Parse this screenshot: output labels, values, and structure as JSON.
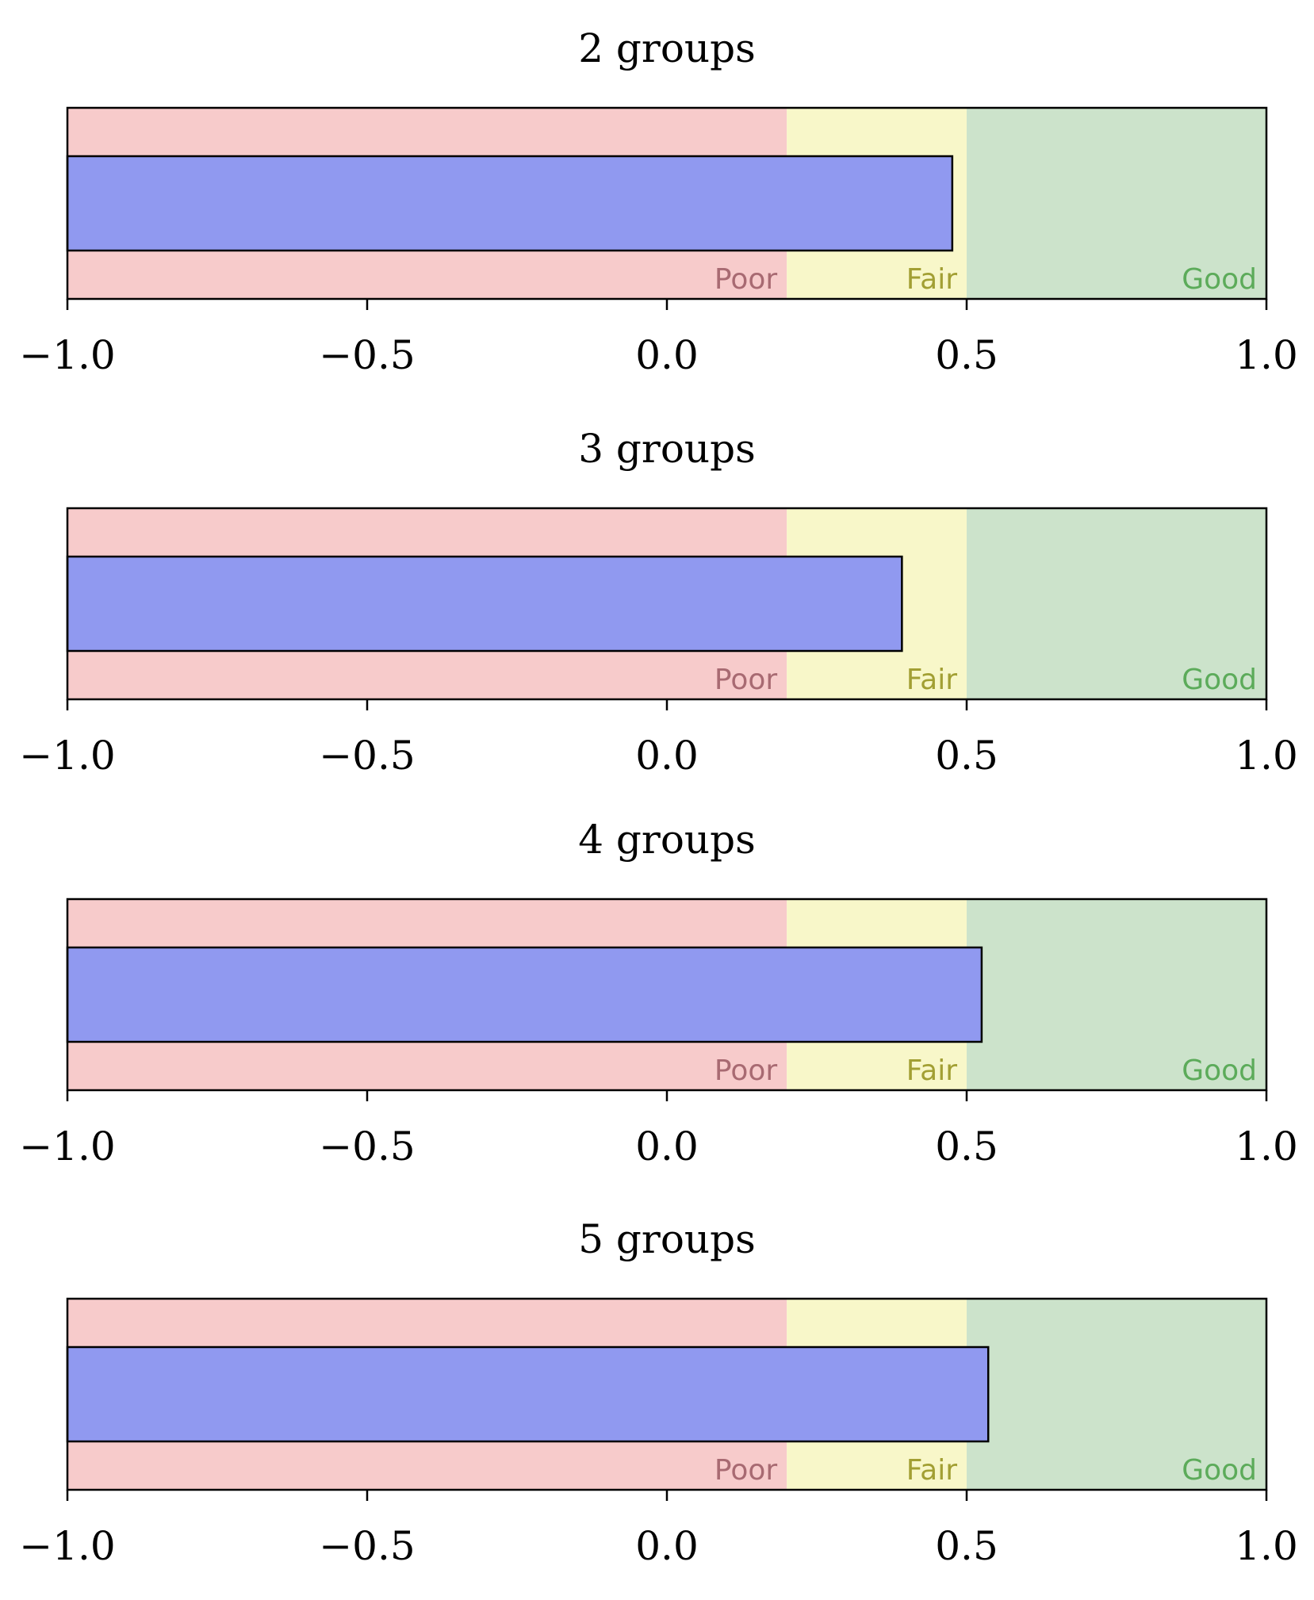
{
  "chart_data": [
    {
      "type": "bar",
      "orientation": "horizontal",
      "title": "2 groups",
      "value": 0.476,
      "xlim": [
        -1.0,
        1.0
      ],
      "xticks": [
        -1.0,
        -0.5,
        0.0,
        0.5,
        1.0
      ],
      "xtick_labels": [
        "−1.0",
        "−0.5",
        "0.0",
        "0.5",
        "1.0"
      ],
      "bands": [
        {
          "label": "Poor",
          "from": -1.0,
          "to": 0.2
        },
        {
          "label": "Fair",
          "from": 0.2,
          "to": 0.5
        },
        {
          "label": "Good",
          "from": 0.5,
          "to": 1.0
        }
      ]
    },
    {
      "type": "bar",
      "orientation": "horizontal",
      "title": "3 groups",
      "value": 0.392,
      "xlim": [
        -1.0,
        1.0
      ],
      "xticks": [
        -1.0,
        -0.5,
        0.0,
        0.5,
        1.0
      ],
      "xtick_labels": [
        "−1.0",
        "−0.5",
        "0.0",
        "0.5",
        "1.0"
      ],
      "bands": [
        {
          "label": "Poor",
          "from": -1.0,
          "to": 0.2
        },
        {
          "label": "Fair",
          "from": 0.2,
          "to": 0.5
        },
        {
          "label": "Good",
          "from": 0.5,
          "to": 1.0
        }
      ]
    },
    {
      "type": "bar",
      "orientation": "horizontal",
      "title": "4 groups",
      "value": 0.525,
      "xlim": [
        -1.0,
        1.0
      ],
      "xticks": [
        -1.0,
        -0.5,
        0.0,
        0.5,
        1.0
      ],
      "xtick_labels": [
        "−1.0",
        "−0.5",
        "0.0",
        "0.5",
        "1.0"
      ],
      "bands": [
        {
          "label": "Poor",
          "from": -1.0,
          "to": 0.2
        },
        {
          "label": "Fair",
          "from": 0.2,
          "to": 0.5
        },
        {
          "label": "Good",
          "from": 0.5,
          "to": 1.0
        }
      ]
    },
    {
      "type": "bar",
      "orientation": "horizontal",
      "title": "5 groups",
      "value": 0.536,
      "xlim": [
        -1.0,
        1.0
      ],
      "xticks": [
        -1.0,
        -0.5,
        0.0,
        0.5,
        1.0
      ],
      "xtick_labels": [
        "−1.0",
        "−0.5",
        "0.0",
        "0.5",
        "1.0"
      ],
      "bands": [
        {
          "label": "Poor",
          "from": -1.0,
          "to": 0.2
        },
        {
          "label": "Fair",
          "from": 0.2,
          "to": 0.5
        },
        {
          "label": "Good",
          "from": 0.5,
          "to": 1.0
        }
      ]
    }
  ],
  "colors": {
    "bar_fill": "#9099f0",
    "bar_edge": "#000000",
    "band_poor": "#f7cbcb",
    "band_fair": "#f8f7c9",
    "band_good": "#cce3cb",
    "label_poor": "#a86a72",
    "label_fair": "#a29f33",
    "label_good": "#5cab5a"
  }
}
